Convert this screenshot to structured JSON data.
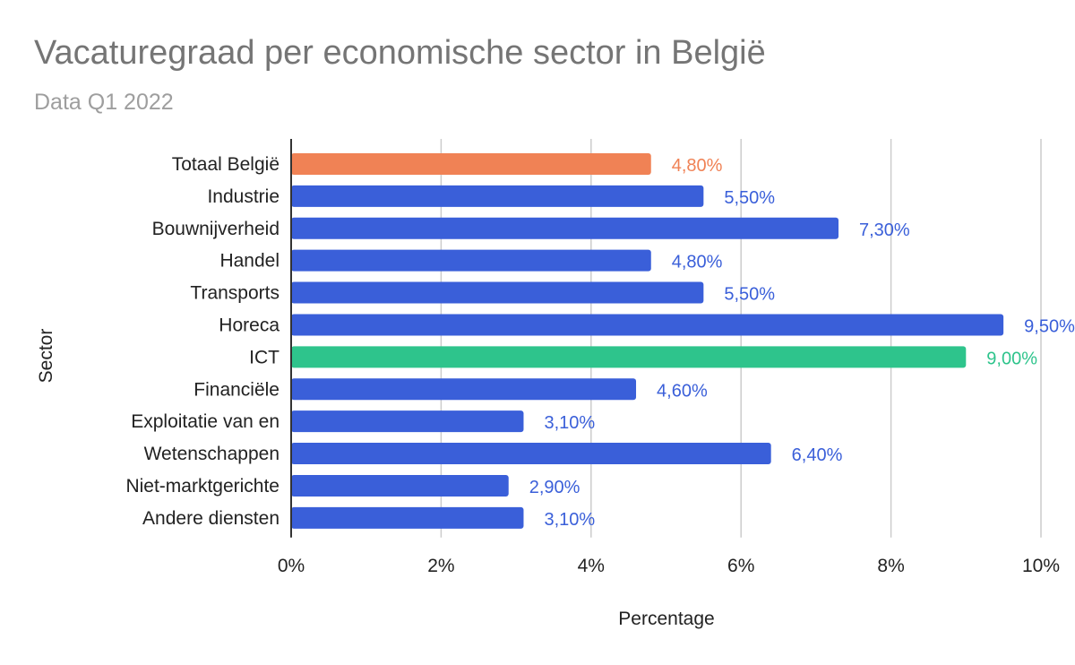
{
  "chart_data": {
    "type": "bar",
    "orientation": "horizontal",
    "title": "Vacaturegraad per economische sector in België",
    "subtitle": "Data Q1 2022",
    "xlabel": "Percentage",
    "ylabel": "Sector",
    "xlim": [
      0,
      10
    ],
    "x_ticks": [
      "0%",
      "2%",
      "4%",
      "6%",
      "8%",
      "10%"
    ],
    "grid": true,
    "legend": "none",
    "categories": [
      "Totaal België",
      "Industrie",
      "Bouwnijverheid",
      "Handel",
      "Transports",
      "Horeca",
      "ICT",
      "Financiële",
      "Exploitatie van en",
      "Wetenschappen",
      "Niet-marktgerichte",
      "Andere diensten"
    ],
    "values": [
      4.8,
      5.5,
      7.3,
      4.8,
      5.5,
      9.5,
      9.0,
      4.6,
      3.1,
      6.4,
      2.9,
      3.1
    ],
    "data_labels": [
      "4,80%",
      "5,50%",
      "7,30%",
      "4,80%",
      "5,50%",
      "9,50%",
      "9,00%",
      "4,60%",
      "3,10%",
      "6,40%",
      "2,90%",
      "3,10%"
    ],
    "colors": [
      "#f08255",
      "#3a5fd9",
      "#3a5fd9",
      "#3a5fd9",
      "#3a5fd9",
      "#3a5fd9",
      "#2ec48c",
      "#3a5fd9",
      "#3a5fd9",
      "#3a5fd9",
      "#3a5fd9",
      "#3a5fd9"
    ]
  }
}
